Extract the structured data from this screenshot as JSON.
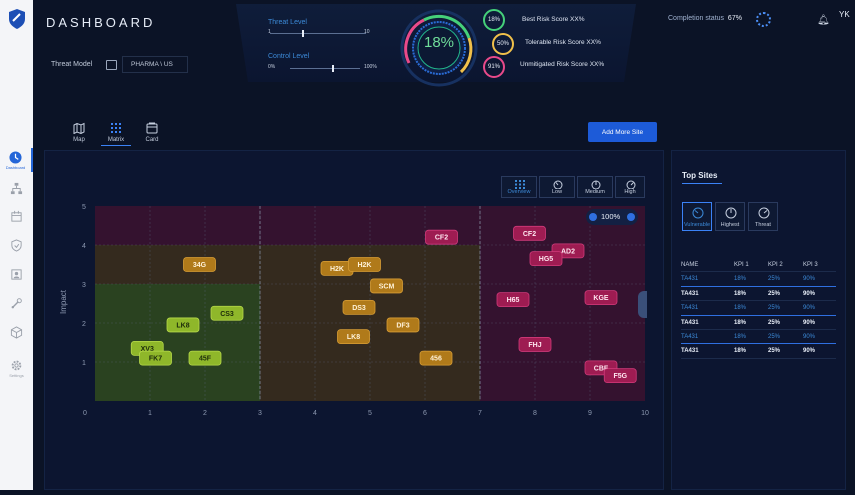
{
  "app": {
    "title": "DASHBOARD",
    "user_initials": "YK"
  },
  "threat_model": {
    "label": "Threat Model",
    "value": "PHARMA \\ US"
  },
  "levels": {
    "threat": {
      "label": "Threat Level",
      "min": "1",
      "max": "10",
      "value": 4
    },
    "control": {
      "label": "Control Level",
      "min": "0%",
      "max": "100%",
      "value": 60
    }
  },
  "gauge": {
    "value": "18%"
  },
  "scores": [
    {
      "pct": "18%",
      "label": "Best Risk Score XX%",
      "color": "#45d17a"
    },
    {
      "pct": "50%",
      "label": "Tolerable Risk Score XX%",
      "color": "#f0c04a"
    },
    {
      "pct": "91%",
      "label": "Unmitigated Risk Score XX%",
      "color": "#e94a8a"
    }
  ],
  "completion": {
    "label": "Completion status",
    "value": "67%"
  },
  "sidebar": [
    {
      "name": "dashboard",
      "icon": "clock-icon",
      "caption": "Dashboard",
      "active": true
    },
    {
      "name": "hierarchy",
      "icon": "hierarchy-icon"
    },
    {
      "name": "calendar",
      "icon": "calendar-icon"
    },
    {
      "name": "shield",
      "icon": "shield-icon"
    },
    {
      "name": "contact",
      "icon": "contact-card-icon"
    },
    {
      "name": "tools",
      "icon": "tools-icon"
    },
    {
      "name": "cube",
      "icon": "cube-icon"
    },
    {
      "name": "settings",
      "icon": "gear-icon",
      "caption": "Settings"
    }
  ],
  "views": [
    {
      "name": "map",
      "label": "Map",
      "icon": "map-icon"
    },
    {
      "name": "matrix",
      "label": "Matrix",
      "icon": "grid-icon",
      "active": true
    },
    {
      "name": "card",
      "label": "Card",
      "icon": "card-icon"
    }
  ],
  "add_button": "Add More Site",
  "filters": [
    {
      "name": "overview",
      "label": "Overview",
      "icon": "grid-icon",
      "active": true
    },
    {
      "name": "low",
      "label": "Low",
      "icon": "speedometer-icon"
    },
    {
      "name": "medium",
      "label": "Medium",
      "icon": "speedometer-icon"
    },
    {
      "name": "high",
      "label": "High",
      "icon": "speedometer-icon"
    }
  ],
  "zoom": "100%",
  "chart_data": {
    "type": "scatter",
    "ylabel": "Impact",
    "xlabel": "",
    "xlim": [
      0,
      10
    ],
    "ylim": [
      0,
      5
    ],
    "x_ticks": [
      "0",
      "1",
      "2",
      "3",
      "4",
      "5",
      "6",
      "7",
      "8",
      "9",
      "10"
    ],
    "y_ticks": [
      "1",
      "2",
      "3",
      "4",
      "5"
    ],
    "grid": true,
    "zones": [
      {
        "x": [
          0,
          3
        ],
        "y": [
          0,
          3
        ],
        "color": "#2e4a1f"
      },
      {
        "x": [
          3,
          7
        ],
        "y": [
          0,
          3
        ],
        "color": "#3a2e1c"
      },
      {
        "x": [
          0,
          7
        ],
        "y": [
          3,
          4
        ],
        "color": "#3a2e1c"
      },
      {
        "x": [
          7,
          10
        ],
        "y": [
          0,
          4
        ],
        "color": "#3a1230"
      },
      {
        "x": [
          0,
          10
        ],
        "y": [
          4,
          5
        ],
        "color": "#3a1230"
      }
    ],
    "points": [
      {
        "label": "34G",
        "x": 1.9,
        "y": 3.5,
        "level": "medium"
      },
      {
        "label": "LK8",
        "x": 1.6,
        "y": 1.95,
        "level": "low"
      },
      {
        "label": "CS3",
        "x": 2.4,
        "y": 2.25,
        "level": "low"
      },
      {
        "label": "XV3",
        "x": 0.95,
        "y": 1.35,
        "level": "low"
      },
      {
        "label": "FK7",
        "x": 1.1,
        "y": 1.1,
        "level": "low"
      },
      {
        "label": "45F",
        "x": 2.0,
        "y": 1.1,
        "level": "low"
      },
      {
        "label": "H2K",
        "x": 4.4,
        "y": 3.4,
        "level": "medium"
      },
      {
        "label": "H2K",
        "x": 4.9,
        "y": 3.5,
        "level": "medium"
      },
      {
        "label": "SCM",
        "x": 5.3,
        "y": 2.95,
        "level": "medium"
      },
      {
        "label": "DS3",
        "x": 4.8,
        "y": 2.4,
        "level": "medium"
      },
      {
        "label": "DF3",
        "x": 5.6,
        "y": 1.95,
        "level": "medium"
      },
      {
        "label": "LK8",
        "x": 4.7,
        "y": 1.65,
        "level": "medium"
      },
      {
        "label": "456",
        "x": 6.2,
        "y": 1.1,
        "level": "medium"
      },
      {
        "label": "CF2",
        "x": 6.3,
        "y": 4.2,
        "level": "high"
      },
      {
        "label": "CF2",
        "x": 7.9,
        "y": 4.3,
        "level": "high"
      },
      {
        "label": "AD2",
        "x": 8.6,
        "y": 3.85,
        "level": "high"
      },
      {
        "label": "HG5",
        "x": 8.2,
        "y": 3.65,
        "level": "high"
      },
      {
        "label": "H65",
        "x": 7.6,
        "y": 2.6,
        "level": "high"
      },
      {
        "label": "KGE",
        "x": 9.2,
        "y": 2.65,
        "level": "high"
      },
      {
        "label": "FHJ",
        "x": 8.0,
        "y": 1.45,
        "level": "high"
      },
      {
        "label": "CBF",
        "x": 9.2,
        "y": 0.85,
        "level": "high"
      },
      {
        "label": "F5G",
        "x": 9.55,
        "y": 0.65,
        "level": "high"
      }
    ]
  },
  "top_sites": {
    "title": "Top Sites",
    "buttons": [
      {
        "name": "vulnerable",
        "label": "Vulnerable",
        "active": true
      },
      {
        "name": "highest",
        "label": "Highest"
      },
      {
        "name": "threat",
        "label": "Threat"
      }
    ],
    "columns": [
      "NAME",
      "KPI 1",
      "KPI 2",
      "KPI 3"
    ],
    "rows": [
      [
        "TA431",
        "18%",
        "25%",
        "90%"
      ],
      [
        "TA431",
        "18%",
        "25%",
        "90%"
      ],
      [
        "TA431",
        "18%",
        "25%",
        "90%"
      ],
      [
        "TA431",
        "18%",
        "25%",
        "90%"
      ],
      [
        "TA431",
        "18%",
        "25%",
        "90%"
      ],
      [
        "TA431",
        "18%",
        "25%",
        "90%"
      ]
    ],
    "row_styles": [
      "hl",
      "wh",
      "hl",
      "wh",
      "hl",
      "wh"
    ]
  }
}
